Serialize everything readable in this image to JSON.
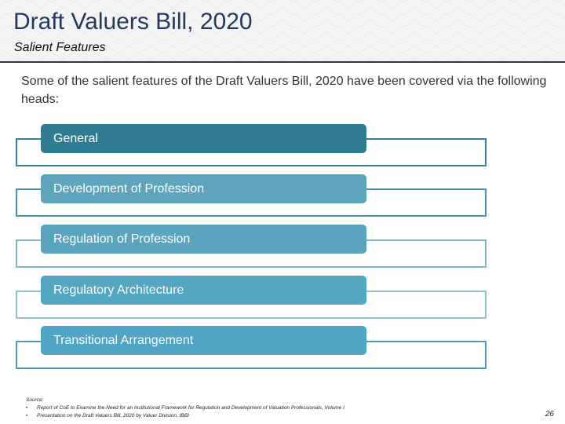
{
  "header": {
    "title": "Draft Valuers Bill, 2020",
    "subtitle": "Salient Features"
  },
  "intro": "Some of the salient features of the Draft Valuers Bill, 2020 have been covered via the following heads:",
  "heads": [
    {
      "label": "General",
      "color": "#2e7b92",
      "border": "#3a7f96"
    },
    {
      "label": "Development of Profession",
      "color": "#5ea4bc",
      "border": "#4e92aa"
    },
    {
      "label": "Regulation of Profession",
      "color": "#5aa4be",
      "border": "#7cb7cc"
    },
    {
      "label": "Regulatory Architecture",
      "color": "#55a6c1",
      "border": "#8cc0d2"
    },
    {
      "label": "Transitional Arrangement",
      "color": "#4fa5c3",
      "border": "#4f9cb8"
    }
  ],
  "footer": {
    "source_label": "Source:",
    "bullet": "•",
    "sources": [
      "Report of CoE to Examine the Need for an Institutional Framework for Regulation and Development of Valuation Professionals, Volume I",
      "Presentation on the Draft Valuers Bill, 2020 by Valuer Division, IBBI"
    ],
    "page_number": "26"
  }
}
